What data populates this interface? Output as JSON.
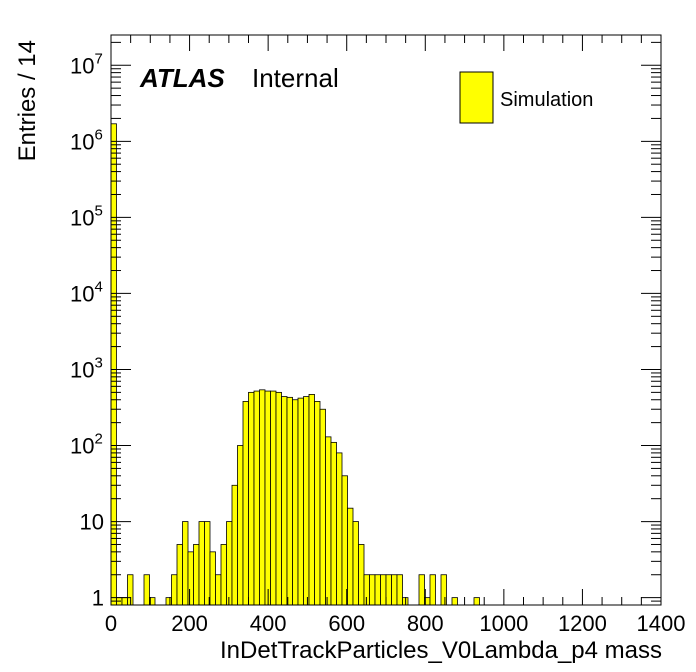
{
  "chart_data": {
    "type": "bar",
    "histogram": true,
    "xlabel": "InDetTrackParticles_V0Lambda_p4 mass",
    "ylabel": "Entries / 14",
    "xlim": [
      0,
      1400
    ],
    "ylim": [
      0.8,
      25000000
    ],
    "yscale": "log",
    "bin_width": 14,
    "x_ticks": [
      0,
      200,
      400,
      600,
      800,
      1000,
      1200,
      1400
    ],
    "y_ticks": [
      {
        "value": 1,
        "base": "1",
        "exp": ""
      },
      {
        "value": 10,
        "base": "10",
        "exp": ""
      },
      {
        "value": 100,
        "base": "10",
        "exp": "2"
      },
      {
        "value": 1000,
        "base": "10",
        "exp": "3"
      },
      {
        "value": 10000,
        "base": "10",
        "exp": "4"
      },
      {
        "value": 100000,
        "base": "10",
        "exp": "5"
      },
      {
        "value": 1000000,
        "base": "10",
        "exp": "6"
      },
      {
        "value": 10000000,
        "base": "10",
        "exp": "7"
      }
    ],
    "series": [
      {
        "name": "Simulation",
        "color": "#ffff00",
        "bins": [
          [
            0,
            1700000
          ],
          [
            14,
            1
          ],
          [
            28,
            1
          ],
          [
            42,
            2
          ],
          [
            84,
            2
          ],
          [
            98,
            1
          ],
          [
            140,
            1
          ],
          [
            154,
            2
          ],
          [
            168,
            5
          ],
          [
            182,
            10
          ],
          [
            196,
            4
          ],
          [
            210,
            5
          ],
          [
            224,
            10
          ],
          [
            238,
            10
          ],
          [
            252,
            4
          ],
          [
            266,
            2
          ],
          [
            280,
            5
          ],
          [
            294,
            10
          ],
          [
            308,
            30
          ],
          [
            322,
            100
          ],
          [
            336,
            380
          ],
          [
            350,
            500
          ],
          [
            364,
            520
          ],
          [
            378,
            540
          ],
          [
            392,
            520
          ],
          [
            406,
            520
          ],
          [
            420,
            500
          ],
          [
            434,
            440
          ],
          [
            448,
            430
          ],
          [
            462,
            400
          ],
          [
            476,
            420
          ],
          [
            490,
            440
          ],
          [
            504,
            470
          ],
          [
            518,
            380
          ],
          [
            532,
            300
          ],
          [
            546,
            130
          ],
          [
            560,
            110
          ],
          [
            574,
            80
          ],
          [
            588,
            40
          ],
          [
            602,
            15
          ],
          [
            616,
            10
          ],
          [
            630,
            5
          ],
          [
            644,
            2
          ],
          [
            658,
            2
          ],
          [
            672,
            2
          ],
          [
            686,
            2
          ],
          [
            700,
            2
          ],
          [
            714,
            2
          ],
          [
            728,
            2
          ],
          [
            742,
            1
          ],
          [
            784,
            2
          ],
          [
            798,
            1
          ],
          [
            812,
            2
          ],
          [
            840,
            2
          ],
          [
            868,
            1
          ],
          [
            924,
            1
          ]
        ]
      }
    ],
    "legend": {
      "position": "top-right",
      "entries": [
        "Simulation"
      ]
    },
    "annotations": {
      "atlas": "ATLAS",
      "status": "Internal"
    },
    "grid": false
  }
}
